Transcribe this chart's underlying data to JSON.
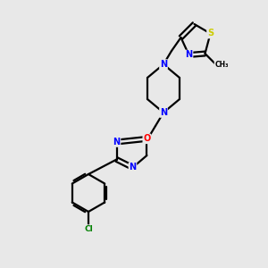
{
  "bg_color": "#e8e8e8",
  "bond_color": "#000000",
  "bond_width": 1.6,
  "atom_colors": {
    "N": "#0000ff",
    "O": "#ff0000",
    "S": "#cccc00",
    "Cl": "#008000",
    "C": "#000000"
  },
  "font_size_atom": 7.0,
  "methyl_fontsize": 6.0
}
